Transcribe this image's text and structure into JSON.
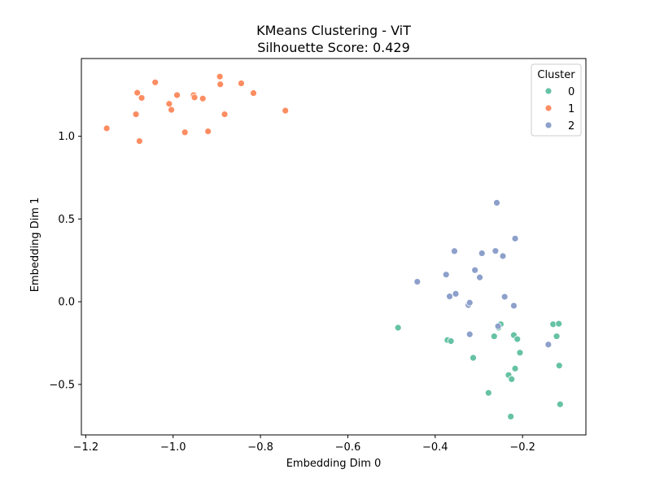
{
  "chart_data": {
    "type": "scatter",
    "title": "KMeans Clustering - ViT",
    "subtitle": "Silhouette Score: 0.429",
    "xlabel": "Embedding Dim 0",
    "ylabel": "Embedding Dim 1",
    "xlim": [
      -1.21,
      -0.055
    ],
    "ylim": [
      -0.805,
      1.47
    ],
    "xticks": [
      -1.2,
      -1.0,
      -0.8,
      -0.6,
      -0.4,
      -0.2
    ],
    "xtick_labels": [
      "−1.2",
      "−1.0",
      "−0.8",
      "−0.6",
      "−0.4",
      "−0.2"
    ],
    "yticks": [
      -0.5,
      0.0,
      0.5,
      1.0
    ],
    "ytick_labels": [
      "−0.5",
      "0.0",
      "0.5",
      "1.0"
    ],
    "grid": false,
    "legend": {
      "title": "Cluster",
      "placement": "top-right",
      "entries": [
        "0",
        "1",
        "2"
      ]
    },
    "series": [
      {
        "name": "0",
        "color": "#66c2a5",
        "points": [
          {
            "x": -0.485,
            "y": -0.157
          },
          {
            "x": -0.372,
            "y": -0.232
          },
          {
            "x": -0.364,
            "y": -0.238
          },
          {
            "x": -0.313,
            "y": -0.339
          },
          {
            "x": -0.278,
            "y": -0.551
          },
          {
            "x": -0.265,
            "y": -0.209
          },
          {
            "x": -0.255,
            "y": -0.157
          },
          {
            "x": -0.25,
            "y": -0.136
          },
          {
            "x": -0.232,
            "y": -0.443
          },
          {
            "x": -0.227,
            "y": -0.694
          },
          {
            "x": -0.225,
            "y": -0.468
          },
          {
            "x": -0.22,
            "y": -0.202
          },
          {
            "x": -0.217,
            "y": -0.404
          },
          {
            "x": -0.212,
            "y": -0.226
          },
          {
            "x": -0.206,
            "y": -0.308
          },
          {
            "x": -0.13,
            "y": -0.136
          },
          {
            "x": -0.122,
            "y": -0.209
          },
          {
            "x": -0.117,
            "y": -0.133
          },
          {
            "x": -0.116,
            "y": -0.386
          },
          {
            "x": -0.114,
            "y": -0.62
          }
        ]
      },
      {
        "name": "1",
        "color": "#fc8d62",
        "points": [
          {
            "x": -1.152,
            "y": 1.048
          },
          {
            "x": -1.085,
            "y": 1.133
          },
          {
            "x": -1.082,
            "y": 1.263
          },
          {
            "x": -1.077,
            "y": 0.971
          },
          {
            "x": -1.072,
            "y": 1.232
          },
          {
            "x": -1.041,
            "y": 1.326
          },
          {
            "x": -1.009,
            "y": 1.196
          },
          {
            "x": -1.004,
            "y": 1.16
          },
          {
            "x": -0.991,
            "y": 1.249
          },
          {
            "x": -0.973,
            "y": 1.024
          },
          {
            "x": -0.953,
            "y": 1.249
          },
          {
            "x": -0.951,
            "y": 1.235
          },
          {
            "x": -0.932,
            "y": 1.228
          },
          {
            "x": -0.92,
            "y": 1.03
          },
          {
            "x": -0.893,
            "y": 1.361
          },
          {
            "x": -0.892,
            "y": 1.314
          },
          {
            "x": -0.882,
            "y": 1.133
          },
          {
            "x": -0.844,
            "y": 1.32
          },
          {
            "x": -0.816,
            "y": 1.261
          },
          {
            "x": -0.743,
            "y": 1.155
          }
        ]
      },
      {
        "name": "2",
        "color": "#8da0cb",
        "points": [
          {
            "x": -0.441,
            "y": 0.121
          },
          {
            "x": -0.375,
            "y": 0.164
          },
          {
            "x": -0.367,
            "y": 0.032
          },
          {
            "x": -0.356,
            "y": 0.306
          },
          {
            "x": -0.353,
            "y": 0.048
          },
          {
            "x": -0.324,
            "y": -0.02
          },
          {
            "x": -0.321,
            "y": -0.006
          },
          {
            "x": -0.321,
            "y": -0.197
          },
          {
            "x": -0.309,
            "y": 0.191
          },
          {
            "x": -0.298,
            "y": 0.147
          },
          {
            "x": -0.293,
            "y": 0.293
          },
          {
            "x": -0.262,
            "y": 0.307
          },
          {
            "x": -0.259,
            "y": 0.598
          },
          {
            "x": -0.256,
            "y": -0.148
          },
          {
            "x": -0.245,
            "y": 0.276
          },
          {
            "x": -0.241,
            "y": 0.03
          },
          {
            "x": -0.22,
            "y": -0.024
          },
          {
            "x": -0.217,
            "y": 0.382
          },
          {
            "x": -0.141,
            "y": -0.259
          }
        ]
      }
    ]
  }
}
